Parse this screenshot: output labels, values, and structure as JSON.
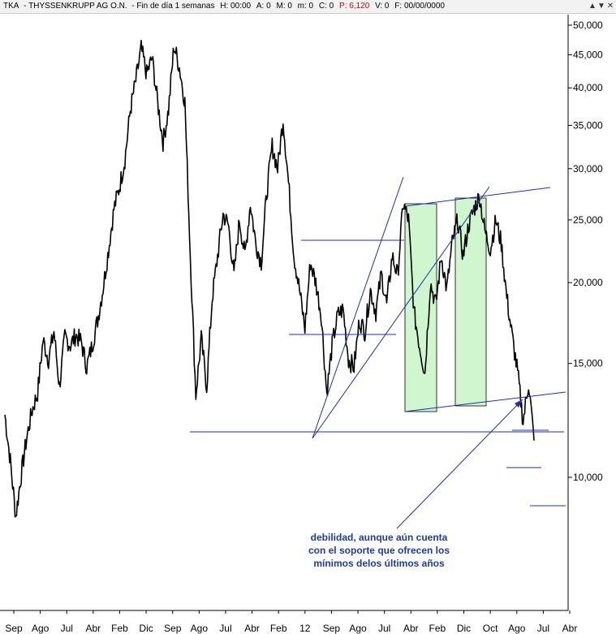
{
  "header": {
    "symbol": "TKA",
    "name": "THYSSENKRUPP AG O.N.",
    "period": "Fin de día 1 semanas",
    "h": "H: 00:00",
    "a": "A: 0",
    "m": "M: 0",
    "mm": "m: 0",
    "c": "C: 0",
    "p": "P: 6,120",
    "v": "V: 0",
    "f": "F: 00/00/0000",
    "buttons": [
      "▲",
      "▼",
      "✕"
    ]
  },
  "colors": {
    "price_line": "#000000",
    "trendline": "#1f2fae",
    "box_fill": "#c8f5c8",
    "annotation": "#1f3aa0",
    "header_red": "#e00000"
  },
  "chart_data": {
    "type": "line",
    "title": "TKA - THYSSENKRUPP AG O.N.",
    "y_scale": "log",
    "ylim": [
      8000,
      54000
    ],
    "y_ticks": [
      "50,000",
      "45,000",
      "40,000",
      "35,000",
      "30,000",
      "25,000",
      "20,000",
      "15,000",
      "10,000"
    ],
    "x_ticks": [
      "Sep",
      "Ago",
      "Jul",
      "Abr",
      "Feb",
      "Dic",
      "Sep",
      "Ago",
      "Jul",
      "Abr",
      "Feb",
      "12",
      "Sep",
      "Ago",
      "Jul",
      "Abr",
      "Feb",
      "Dic",
      "Oct",
      "Ago",
      "Jul",
      "Abr"
    ],
    "series": [
      {
        "values": [
          12500,
          10600,
          8700,
          10100,
          11500,
          12700,
          13500,
          16300,
          15200,
          16800,
          13800,
          16500,
          16000,
          16600,
          16200,
          14800,
          16000,
          17500,
          19600,
          22500,
          26000,
          28100,
          31000,
          37000,
          41000,
          46000,
          42000,
          44500,
          38000,
          33000,
          37000,
          46500,
          43000,
          38000,
          22000,
          13400,
          16400,
          13800,
          18900,
          22000,
          25500,
          24500,
          20500,
          25000,
          22000,
          26500,
          23000,
          21500,
          27500,
          32500,
          30000,
          35800,
          28500,
          22000,
          19500,
          17000,
          21500,
          20000,
          17800,
          13500,
          16000,
          17800,
          18200,
          15200,
          14800,
          17500,
          16800,
          19500,
          18000,
          20600,
          18500,
          22000,
          20500,
          26500,
          25000,
          18000,
          16000,
          14500,
          20000,
          18500,
          22000,
          19500,
          23000,
          25000,
          22000,
          24500,
          26000,
          27200,
          24000,
          22500,
          25000,
          23000,
          19000,
          16500,
          14500,
          12200,
          14000,
          11400
        ]
      }
    ],
    "annotation": "debilidad, aunque aún cuenta\ncon el soporte que ofrecen los\nmínimos delos últimos años"
  }
}
